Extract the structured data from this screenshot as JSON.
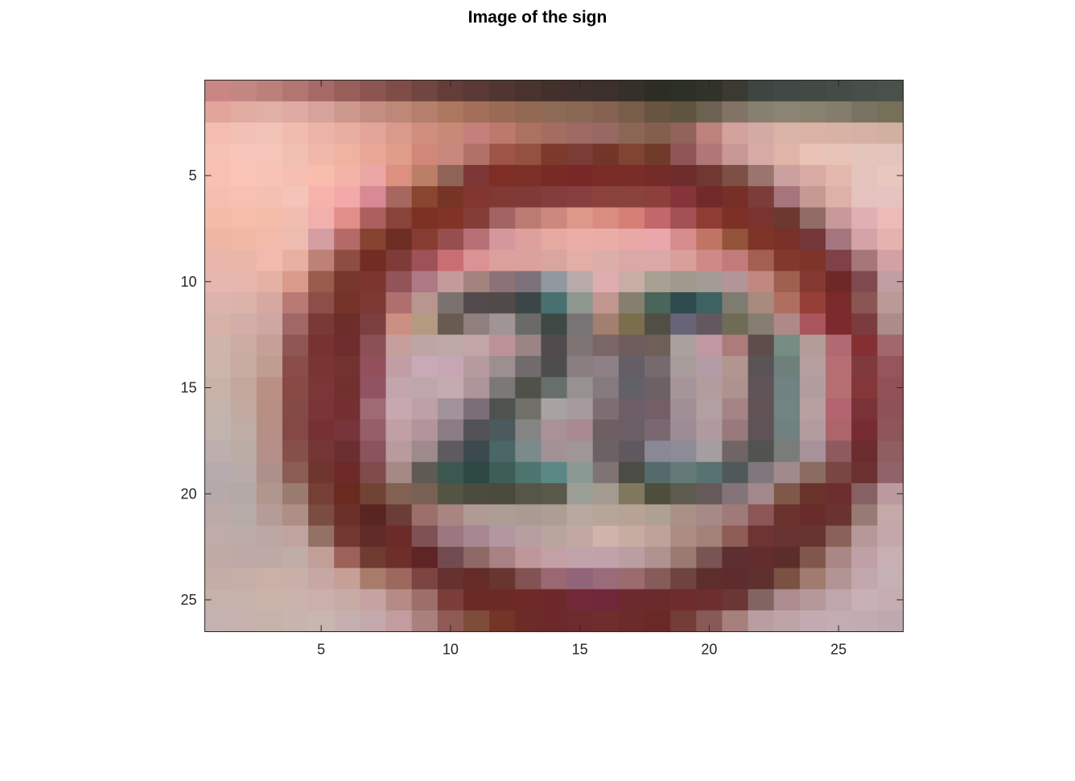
{
  "chart_data": {
    "type": "heatmap",
    "title": "Image of the sign",
    "xlabel": "",
    "ylabel": "",
    "xlim": [
      0.5,
      27.5
    ],
    "ylim": [
      0.5,
      26.5
    ],
    "y_direction": "reverse",
    "x_ticks": [
      5,
      10,
      15,
      20,
      25
    ],
    "y_ticks": [
      5,
      10,
      15,
      20,
      25
    ],
    "x_tick_labels": [
      "5",
      "10",
      "15",
      "20",
      "25"
    ],
    "y_tick_labels": [
      "5",
      "10",
      "15",
      "20",
      "25"
    ],
    "grid": false,
    "axis_color": "#262626",
    "pixels": [
      [
        "#c98684",
        "#c48682",
        "#bc807a",
        "#b27572",
        "#a66966",
        "#975e5a",
        "#8c5551",
        "#804c48",
        "#714541",
        "#643d38",
        "#5a3833",
        "#513530",
        "#4a332c",
        "#43302b",
        "#3f302c",
        "#3d2f2b",
        "#35302a",
        "#2e2d24",
        "#2c3026",
        "#313328",
        "#3a3a32",
        "#3f4641",
        "#414845",
        "#434a44",
        "#454b45",
        "#475048",
        "#4a514a"
      ],
      [
        "#e3a49c",
        "#e2aba2",
        "#e0b0a5",
        "#dfaaa4",
        "#d6a29c",
        "#cd988e",
        "#c48d81",
        "#bd8877",
        "#b47f6c",
        "#ab775f",
        "#a46f5a",
        "#9a6a55",
        "#936853",
        "#8c6a55",
        "#886755",
        "#856252",
        "#775d4a",
        "#675542",
        "#5e5440",
        "#6d6252",
        "#827366",
        "#878070",
        "#8b8373",
        "#8a8271",
        "#857d6c",
        "#7a7262",
        "#767059"
      ],
      [
        "#f3bdb1",
        "#f3c0b5",
        "#f1c2b6",
        "#f0bcb0",
        "#ebb4a8",
        "#e8afa1",
        "#e2a597",
        "#d99a8b",
        "#cf8e7e",
        "#c98979",
        "#c4817b",
        "#bb7a6c",
        "#ad725f",
        "#a46d62",
        "#9e6962",
        "#986863",
        "#8c6655",
        "#82604d",
        "#91635a",
        "#bc827b",
        "#d3a29d",
        "#d4aba4",
        "#dab3a8",
        "#dbb3a5",
        "#d9b2a6",
        "#d5b1a5",
        "#d1b0a2"
      ],
      [
        "#f5c2b5",
        "#f7c5b9",
        "#f6c4b8",
        "#f2bfb3",
        "#f0b8a8",
        "#efb3a1",
        "#e9a895",
        "#df9d8a",
        "#d18878",
        "#c8877c",
        "#b17168",
        "#9e5447",
        "#94513f",
        "#7c3a2c",
        "#7b3c35",
        "#733528",
        "#7f4432",
        "#713b2a",
        "#8f5658",
        "#b07779",
        "#c79796",
        "#d8aaa6",
        "#e0b5a8",
        "#eac2b6",
        "#e6c3b6",
        "#e3c5bc",
        "#e3c4bc"
      ],
      [
        "#f7c0b1",
        "#f9c4b6",
        "#f8c3b6",
        "#f5bfb3",
        "#f8bdac",
        "#f3b4a7",
        "#eba7a4",
        "#dd8f80",
        "#bb7e67",
        "#8f6356",
        "#7c3635",
        "#7e2d27",
        "#7c2f26",
        "#792a25",
        "#772827",
        "#792b26",
        "#792d28",
        "#732c28",
        "#6f2c2c",
        "#6f3830",
        "#7d5046",
        "#9a756f",
        "#cca09f",
        "#d8aaa4",
        "#e4b8ad",
        "#e3c4bc",
        "#e7c7be"
      ],
      [
        "#f5bfaf",
        "#f7c1b1",
        "#f4c0b2",
        "#f5c4b8",
        "#f7b3ab",
        "#f3a8aa",
        "#d88994",
        "#a76760",
        "#894530",
        "#763425",
        "#83362f",
        "#813933",
        "#7f3b37",
        "#833d3d",
        "#873f3f",
        "#8b423b",
        "#8a423c",
        "#8c3f3b",
        "#85353a",
        "#72292a",
        "#772f28",
        "#7b3c3a",
        "#a5757b",
        "#c69993",
        "#ddb0a8",
        "#e6c2be",
        "#e7c3c0"
      ],
      [
        "#f4bba8",
        "#f6bda9",
        "#f4bdaa",
        "#f0bdb0",
        "#f2b0ad",
        "#e28f89",
        "#ad5f5d",
        "#8a4338",
        "#7c3122",
        "#813326",
        "#853d38",
        "#a26462",
        "#bb7b74",
        "#cc887c",
        "#dd9889",
        "#d88d80",
        "#d67f76",
        "#c2686a",
        "#a35054",
        "#8e3c34",
        "#7c3026",
        "#7b332f",
        "#6d3830",
        "#906a64",
        "#c9999a",
        "#e0afb3",
        "#edbbb7"
      ],
      [
        "#efb6a3",
        "#f1b8a5",
        "#f2bba9",
        "#edbcb0",
        "#d49ea3",
        "#b46b68",
        "#854330",
        "#6d2d22",
        "#863c30",
        "#984e4e",
        "#b87077",
        "#d4979d",
        "#dea09d",
        "#e6a9a2",
        "#eaaea7",
        "#ebaca6",
        "#e9a7a6",
        "#e9a6ab",
        "#d58c8b",
        "#c07564",
        "#915339",
        "#7e3427",
        "#783029",
        "#74383a",
        "#a57680",
        "#d3a3a8",
        "#e5b3ad"
      ],
      [
        "#e9b4a9",
        "#eab6aa",
        "#f0baac",
        "#e8b0a1",
        "#bd8177",
        "#8d4d43",
        "#722c23",
        "#7f3b37",
        "#9e5158",
        "#c96f74",
        "#dc9294",
        "#dba09c",
        "#daa19d",
        "#d8a69f",
        "#e2aea6",
        "#dcaea9",
        "#dba8a7",
        "#dba8a9",
        "#d99f9a",
        "#cf8a86",
        "#c27b7a",
        "#a35f51",
        "#82382c",
        "#7d3429",
        "#7f4048",
        "#a67779",
        "#d3a1a5"
      ],
      [
        "#e5b7ae",
        "#e6b6ad",
        "#e5b1a5",
        "#d99a8c",
        "#995b4c",
        "#76362c",
        "#7d352f",
        "#925458",
        "#ae7884",
        "#c49a9b",
        "#a4827e",
        "#8b7276",
        "#7d717c",
        "#9198a0",
        "#b7aaa8",
        "#e0adaf",
        "#c7ada3",
        "#a7a093",
        "#a1998e",
        "#a39a94",
        "#b39499",
        "#c2877f",
        "#a06050",
        "#833930",
        "#6e2828",
        "#7f4950",
        "#c09ea3"
      ],
      [
        "#dcb3ad",
        "#dbb3ab",
        "#d7a8a2",
        "#b97a75",
        "#8c4e48",
        "#743229",
        "#7d3a34",
        "#b06f6f",
        "#b9958f",
        "#7b7270",
        "#534a4b",
        "#524949",
        "#3c4649",
        "#487070",
        "#8f9791",
        "#c0968f",
        "#857f6f",
        "#4a6559",
        "#2f4a4d",
        "#3e6262",
        "#7e7b70",
        "#a98a7e",
        "#b06e60",
        "#953f38",
        "#7a2a2a",
        "#8a5653",
        "#ba9a96"
      ],
      [
        "#d6b2a8",
        "#d3aea8",
        "#cea6a2",
        "#a06767",
        "#793937",
        "#6d2d2a",
        "#7c3f40",
        "#cc9083",
        "#b59a82",
        "#6a5b52",
        "#8f7f7d",
        "#a09494",
        "#6a6b67",
        "#3e4945",
        "#787476",
        "#a27f6f",
        "#7b6e4d",
        "#504f46",
        "#686477",
        "#645860",
        "#6f6b56",
        "#877c70",
        "#b08987",
        "#a8555b",
        "#7c2a2e",
        "#7c3b3e",
        "#ac8c8a"
      ],
      [
        "#cfb4ab",
        "#ccaba3",
        "#c4a099",
        "#8f5753",
        "#773332",
        "#6f2d2d",
        "#8b5053",
        "#c69e9b",
        "#bda5a3",
        "#bea8a6",
        "#c3a4a7",
        "#bc9298",
        "#9a8484",
        "#524b4d",
        "#7e7473",
        "#7a6567",
        "#6f5c5c",
        "#6e5f59",
        "#aaa09e",
        "#c197a2",
        "#ad7b7a",
        "#5e4d4b",
        "#768d83",
        "#b39b98",
        "#b06a71",
        "#862f33",
        "#a2676d"
      ],
      [
        "#cdb5ab",
        "#c8aca2",
        "#bf9d90",
        "#8a4d49",
        "#7a3434",
        "#723330",
        "#934f5c",
        "#c19ea6",
        "#c8a9b6",
        "#c7a6b3",
        "#b59a9e",
        "#9d8e8f",
        "#716b6c",
        "#4d4d4d",
        "#8a7e81",
        "#8f8086",
        "#645f64",
        "#776a6f",
        "#a89b9c",
        "#b49ca6",
        "#b2958f",
        "#5b5456",
        "#6e7f7c",
        "#b49e9e",
        "#b66e72",
        "#813a3c",
        "#96555a"
      ],
      [
        "#c8b1a7",
        "#c4a69d",
        "#b99082",
        "#874a44",
        "#7b3638",
        "#71302e",
        "#915263",
        "#c4a5ab",
        "#bea7aa",
        "#c6aab1",
        "#ae9599",
        "#7c7877",
        "#505149",
        "#676f6c",
        "#979190",
        "#857b7f",
        "#626168",
        "#6c6265",
        "#a69598",
        "#b29c9e",
        "#ad938f",
        "#605458",
        "#708281",
        "#b29d9e",
        "#b66f71",
        "#853638",
        "#915156"
      ],
      [
        "#c4b3ab",
        "#c2aaa0",
        "#b68f82",
        "#844a45",
        "#7a3538",
        "#742f31",
        "#a06a73",
        "#c7a8b1",
        "#bca1a6",
        "#a2929a",
        "#7c6e78",
        "#4f5350",
        "#707068",
        "#a9a2a3",
        "#a79a9f",
        "#7d6e73",
        "#6e5e68",
        "#745f67",
        "#a09096",
        "#b29fa1",
        "#a58385",
        "#635255",
        "#718481",
        "#b8a0a1",
        "#b36470",
        "#7a3237",
        "#8e5157"
      ],
      [
        "#c1b3ad",
        "#bfada5",
        "#b58f86",
        "#854845",
        "#763134",
        "#77343b",
        "#955e68",
        "#c0a0a5",
        "#b4949b",
        "#8a7c82",
        "#545257",
        "#4b5a5c",
        "#858485",
        "#a99297",
        "#a8898f",
        "#705f62",
        "#6b5e64",
        "#7a6870",
        "#9e8c94",
        "#af9a9f",
        "#9a797d",
        "#5f5358",
        "#708180",
        "#b39ca0",
        "#ad646b",
        "#772c31",
        "#8e5659"
      ],
      [
        "#bdafae",
        "#bbada6",
        "#b58f87",
        "#86504a",
        "#753535",
        "#6b2e31",
        "#8b535e",
        "#b99b9e",
        "#9e8a8d",
        "#5f5a5f",
        "#3c4a4d",
        "#4a6667",
        "#7b8a8a",
        "#a29296",
        "#a09696",
        "#6b6265",
        "#60575f",
        "#8a8796",
        "#8c8b98",
        "#a49ea0",
        "#706464",
        "#505350",
        "#7a7c7a",
        "#a7929a",
        "#8e5a5e",
        "#6b2c2e",
        "#8f5e5f"
      ],
      [
        "#b7aaad",
        "#b9aba9",
        "#ae908b",
        "#8b5c53",
        "#6f3630",
        "#6d2a29",
        "#814b4c",
        "#a48883",
        "#5f5a54",
        "#3b5750",
        "#2e4844",
        "#3e5d57",
        "#4e7470",
        "#5b8885",
        "#8b9995",
        "#7f7473",
        "#4b4c45",
        "#556b6b",
        "#647a79",
        "#587171",
        "#515859",
        "#7f777b",
        "#a08a8c",
        "#8b6c63",
        "#7a4643",
        "#6b3131",
        "#8f6367"
      ],
      [
        "#b7a9a9",
        "#b4a8a6",
        "#b1968e",
        "#9a7b6f",
        "#753f35",
        "#692a20",
        "#714335",
        "#836152",
        "#786055",
        "#535444",
        "#4c4b3f",
        "#4a493b",
        "#565646",
        "#58594b",
        "#9a9e96",
        "#a39a90",
        "#7f785e",
        "#4f4d3c",
        "#5d5a4f",
        "#66595a",
        "#847479",
        "#a2888b",
        "#7e594a",
        "#6a342c",
        "#6d2e2f",
        "#866062",
        "#ba9a9f"
      ],
      [
        "#bcaaa9",
        "#b6aba7",
        "#b59c97",
        "#ae8f85",
        "#7b4c40",
        "#6b3028",
        "#582522",
        "#6c3c36",
        "#9c6f6b",
        "#a98581",
        "#af9a94",
        "#ad9d95",
        "#aa9b92",
        "#ae9d95",
        "#b9a89f",
        "#b6a598",
        "#b7a396",
        "#aea194",
        "#a99187",
        "#a68a87",
        "#9f7a78",
        "#8b5656",
        "#6b332e",
        "#682d2b",
        "#6a3231",
        "#987a75",
        "#c4a9a9"
      ],
      [
        "#bfaba7",
        "#bcaba9",
        "#bba8a5",
        "#c0a39f",
        "#937165",
        "#723830",
        "#602b28",
        "#6b2c29",
        "#7e5254",
        "#9c777f",
        "#a78792",
        "#b297a0",
        "#b69ea1",
        "#b9a49e",
        "#c1a8a2",
        "#d0b3ab",
        "#c7aca1",
        "#bfa299",
        "#ad8c82",
        "#a38078",
        "#8f5c56",
        "#6e3434",
        "#683332",
        "#673530",
        "#896158",
        "#b79899",
        "#c4a7ab"
      ],
      [
        "#c0aaa6",
        "#bfa9a6",
        "#bea9a7",
        "#c0ada7",
        "#c19e96",
        "#9c6158",
        "#703b31",
        "#6e2e2a",
        "#5f2426",
        "#714b4f",
        "#8e6966",
        "#a88184",
        "#bf979a",
        "#c39fa6",
        "#c1a4ab",
        "#c1a1aa",
        "#bb9ea2",
        "#b09391",
        "#9b7a71",
        "#7a5453",
        "#5e2f30",
        "#632d2e",
        "#5c2e2b",
        "#82574b",
        "#a98787",
        "#c0a0a7",
        "#c8afb3"
      ],
      [
        "#c4ada6",
        "#c5aea5",
        "#c9b1a8",
        "#c8b0a9",
        "#c6a7a3",
        "#c6a097",
        "#a97b6b",
        "#9d685d",
        "#7d4541",
        "#66312e",
        "#652b29",
        "#683531",
        "#835353",
        "#9a6773",
        "#92647a",
        "#9a6b7a",
        "#9b6b6d",
        "#855c59",
        "#6f4440",
        "#5d2e2c",
        "#5f2c2d",
        "#5e302e",
        "#7a5142",
        "#a17a70",
        "#b39495",
        "#c2a8ad",
        "#c5b0b3"
      ],
      [
        "#c6b2ab",
        "#c7b1ab",
        "#cab4aa",
        "#cbb3ad",
        "#caafad",
        "#c7aca6",
        "#c6a3a2",
        "#b68b85",
        "#9d6e6a",
        "#7a3d3a",
        "#6b2a25",
        "#6c2a26",
        "#6f2a28",
        "#6d282b",
        "#73293a",
        "#71273a",
        "#6c2a2e",
        "#6a2b2c",
        "#6e2c2f",
        "#6d2e2e",
        "#6b3635",
        "#826563",
        "#ac8c8e",
        "#b5989a",
        "#bea6aa",
        "#c7b1b6",
        "#c5adb1"
      ],
      [
        "#c4b2b0",
        "#c6b2ae",
        "#c5b3aa",
        "#c7b4ae",
        "#c8b6b0",
        "#c5b0af",
        "#c3a9ac",
        "#c29c9e",
        "#a9807e",
        "#8f5a55",
        "#7e4c3a",
        "#743528",
        "#6c2a28",
        "#6c282a",
        "#6d2b2e",
        "#6e2e2d",
        "#6c2b2b",
        "#6a2927",
        "#723e37",
        "#885a57",
        "#a6807c",
        "#b89ea0",
        "#bca4a7",
        "#c1aab1",
        "#c3adb3",
        "#c1adb1",
        "#bea9ae"
      ]
    ]
  }
}
